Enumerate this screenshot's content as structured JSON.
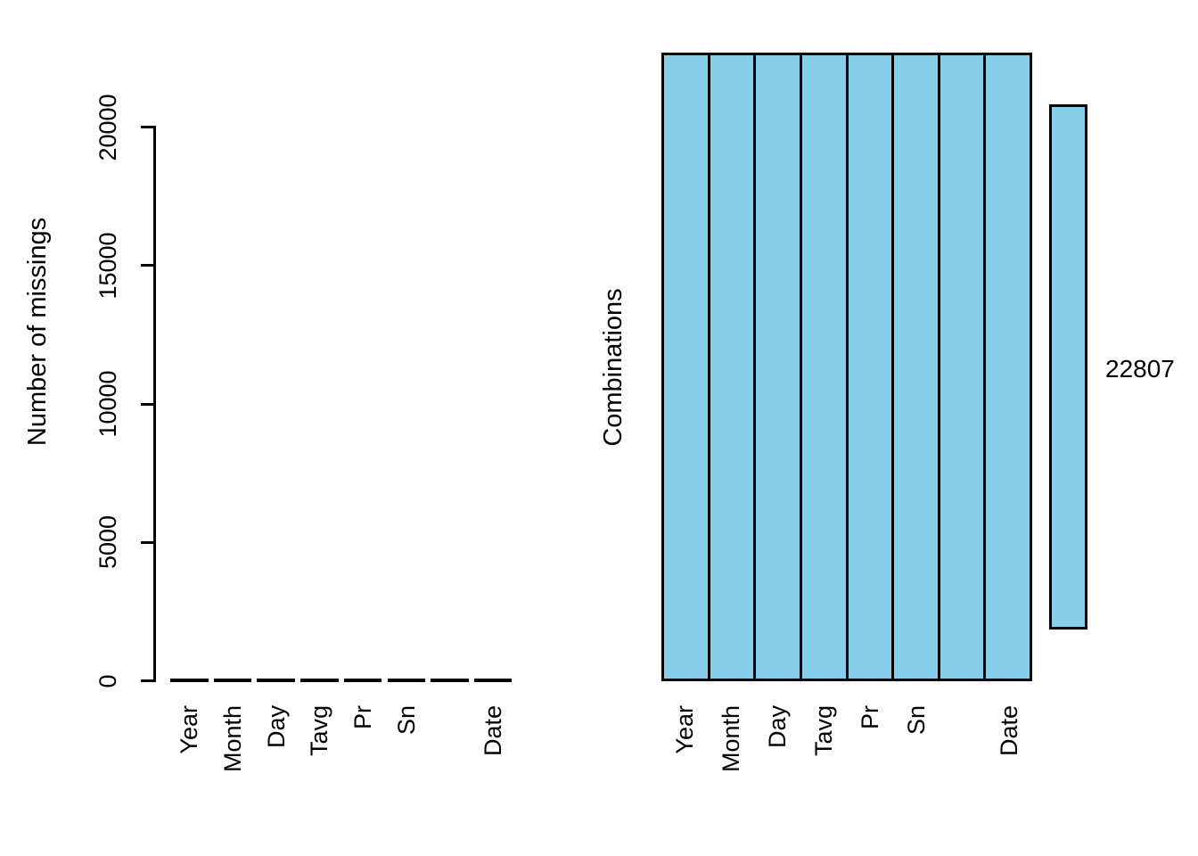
{
  "colors": {
    "background": "#ffffff",
    "axis": "#000000",
    "bar_fill": "#87CEEB"
  },
  "left_chart": {
    "ylabel": "Number of missings",
    "ytick_labels": [
      "0",
      "5000",
      "10000",
      "15000",
      "20000"
    ],
    "categories": [
      "Year",
      "Month",
      "Day",
      "Tavg",
      "Pr",
      "Sn",
      "",
      "Date"
    ],
    "values": [
      0,
      0,
      0,
      0,
      0,
      0,
      0,
      0
    ]
  },
  "right_chart": {
    "ylabel": "Combinations",
    "categories": [
      "Year",
      "Month",
      "Day",
      "Tavg",
      "Pr",
      "Sn",
      "",
      "Date"
    ],
    "combination": {
      "pattern": [
        "observed",
        "observed",
        "observed",
        "observed",
        "observed",
        "observed",
        "observed",
        "observed"
      ],
      "count_label": "22807"
    }
  },
  "chart_data": [
    {
      "type": "bar",
      "title": "",
      "xlabel": "",
      "ylabel": "Number of missings",
      "categories": [
        "Year",
        "Month",
        "Day",
        "Tavg",
        "Pr",
        "Sn",
        "",
        "Date"
      ],
      "values": [
        0,
        0,
        0,
        0,
        0,
        0,
        0,
        0
      ],
      "yticks": [
        0,
        5000,
        10000,
        15000,
        20000
      ],
      "ylim": [
        0,
        22807
      ],
      "grid": false,
      "legend_position": "none",
      "bar_color": "#87CEEB"
    },
    {
      "type": "heatmap",
      "title": "",
      "xlabel": "",
      "ylabel": "Combinations",
      "categories": [
        "Year",
        "Month",
        "Day",
        "Tavg",
        "Pr",
        "Sn",
        "",
        "Date"
      ],
      "rows": [
        {
          "pattern": [
            "observed",
            "observed",
            "observed",
            "observed",
            "observed",
            "observed",
            "observed",
            "observed"
          ],
          "count": 22807
        }
      ],
      "value_colors": {
        "observed": "#87CEEB"
      },
      "grid": false,
      "legend_position": "none"
    }
  ]
}
